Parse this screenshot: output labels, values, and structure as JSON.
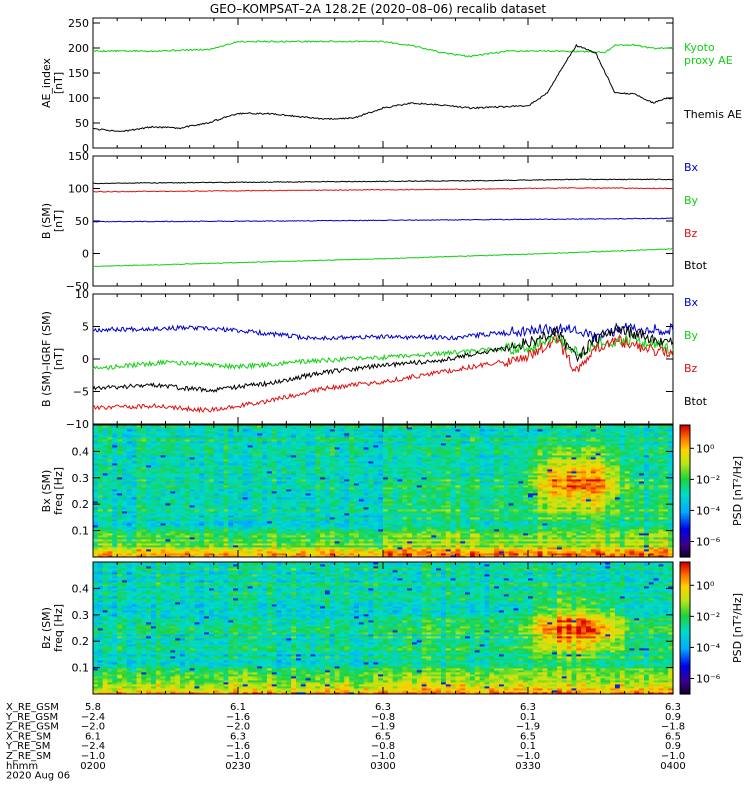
{
  "title": "GEO–KOMPSAT–2A 128.2E (2020–08–06) recalib dataset",
  "colors": {
    "black": "#000000",
    "red": "#e01010",
    "green": "#10d010",
    "blue": "#0000cc",
    "kyoto": "#22cc22"
  },
  "chart_data": [
    {
      "type": "line",
      "id": "ae",
      "ylabel": [
        "AE_index",
        "[nT]"
      ],
      "ylim": [
        0,
        260
      ],
      "yticks": [
        0,
        50,
        100,
        150,
        200,
        250
      ],
      "xlim_minutes": [
        0,
        120
      ],
      "series": [
        {
          "name": "Kyoto proxy AE",
          "label_lines": [
            "Kyoto",
            "proxy AE"
          ],
          "color": "green",
          "points": [
            [
              0,
              194
            ],
            [
              12,
              194
            ],
            [
              24,
              197
            ],
            [
              30,
              213
            ],
            [
              48,
              213
            ],
            [
              60,
              213
            ],
            [
              66,
              205
            ],
            [
              72,
              191
            ],
            [
              78,
              183
            ],
            [
              86,
              194
            ],
            [
              96,
              194
            ],
            [
              104,
              192
            ],
            [
              106,
              191
            ],
            [
              108,
              206
            ],
            [
              112,
              206
            ],
            [
              116,
              199
            ],
            [
              120,
              200
            ]
          ]
        },
        {
          "name": "Themis AE",
          "label_lines": [
            "Themis AE"
          ],
          "color": "black",
          "points": [
            [
              0,
              38
            ],
            [
              6,
              33
            ],
            [
              12,
              42
            ],
            [
              18,
              40
            ],
            [
              24,
              51
            ],
            [
              30,
              69
            ],
            [
              36,
              69
            ],
            [
              48,
              58
            ],
            [
              54,
              60
            ],
            [
              60,
              80
            ],
            [
              66,
              90
            ],
            [
              72,
              86
            ],
            [
              78,
              80
            ],
            [
              84,
              82
            ],
            [
              90,
              84
            ],
            [
              94,
              110
            ],
            [
              98,
              175
            ],
            [
              100,
              205
            ],
            [
              104,
              190
            ],
            [
              108,
              110
            ],
            [
              112,
              108
            ],
            [
              116,
              90
            ],
            [
              118,
              98
            ],
            [
              120,
              100
            ]
          ]
        }
      ]
    },
    {
      "type": "line",
      "id": "bsm",
      "ylabel": [
        "B (SM)",
        "[nT]"
      ],
      "ylim": [
        -50,
        150
      ],
      "yticks": [
        -50,
        0,
        50,
        100,
        150
      ],
      "xlim_minutes": [
        0,
        120
      ],
      "series": [
        {
          "name": "Bx",
          "color": "blue",
          "points": [
            [
              0,
              49
            ],
            [
              40,
              50
            ],
            [
              80,
              52
            ],
            [
              120,
              54
            ]
          ]
        },
        {
          "name": "By",
          "color": "green",
          "points": [
            [
              0,
              -20
            ],
            [
              30,
              -14
            ],
            [
              60,
              -8
            ],
            [
              90,
              -1
            ],
            [
              120,
              7
            ]
          ]
        },
        {
          "name": "Bz",
          "color": "red",
          "points": [
            [
              0,
              95
            ],
            [
              40,
              97
            ],
            [
              80,
              99
            ],
            [
              100,
              101
            ],
            [
              120,
              100
            ]
          ]
        },
        {
          "name": "Btot",
          "color": "black",
          "points": [
            [
              0,
              108
            ],
            [
              40,
              110
            ],
            [
              80,
              112
            ],
            [
              100,
              114
            ],
            [
              120,
              114
            ]
          ]
        }
      ]
    },
    {
      "type": "line",
      "id": "bigrf",
      "ylabel": [
        "B (SM)–IGRF (SM)",
        "[nT]"
      ],
      "ylim": [
        -10,
        10
      ],
      "yticks": [
        -10,
        -5,
        0,
        5,
        10
      ],
      "xlim_minutes": [
        0,
        120
      ],
      "series": [
        {
          "name": "Bx",
          "color": "blue",
          "points": [
            [
              0,
              4.5
            ],
            [
              20,
              4.8
            ],
            [
              30,
              4.4
            ],
            [
              45,
              3.2
            ],
            [
              60,
              3.4
            ],
            [
              75,
              3.3
            ],
            [
              90,
              4.5
            ],
            [
              100,
              4.8
            ],
            [
              104,
              3.2
            ],
            [
              110,
              4.8
            ],
            [
              120,
              4.5
            ]
          ]
        },
        {
          "name": "By",
          "color": "green",
          "points": [
            [
              0,
              -1.5
            ],
            [
              15,
              -0.5
            ],
            [
              30,
              -1.2
            ],
            [
              45,
              -0.3
            ],
            [
              60,
              0.2
            ],
            [
              75,
              1.0
            ],
            [
              90,
              1.8
            ],
            [
              96,
              3.5
            ],
            [
              100,
              1.0
            ],
            [
              105,
              2.5
            ],
            [
              112,
              3.0
            ],
            [
              120,
              1.5
            ]
          ]
        },
        {
          "name": "Bz",
          "color": "red",
          "points": [
            [
              0,
              -7.5
            ],
            [
              12,
              -7.2
            ],
            [
              24,
              -7.9
            ],
            [
              36,
              -6.5
            ],
            [
              48,
              -4.5
            ],
            [
              60,
              -3.5
            ],
            [
              72,
              -2.0
            ],
            [
              84,
              -0.5
            ],
            [
              90,
              0.5
            ],
            [
              96,
              3.0
            ],
            [
              100,
              -2.0
            ],
            [
              104,
              1.5
            ],
            [
              108,
              3.0
            ],
            [
              114,
              1.5
            ],
            [
              120,
              1.0
            ]
          ]
        },
        {
          "name": "Btot",
          "color": "black",
          "points": [
            [
              0,
              -4.5
            ],
            [
              12,
              -4.0
            ],
            [
              24,
              -4.8
            ],
            [
              36,
              -3.8
            ],
            [
              48,
              -2.0
            ],
            [
              60,
              -1.0
            ],
            [
              72,
              -0.2
            ],
            [
              84,
              1.5
            ],
            [
              90,
              2.5
            ],
            [
              96,
              4.2
            ],
            [
              100,
              0.2
            ],
            [
              104,
              3.0
            ],
            [
              108,
              4.8
            ],
            [
              114,
              3.5
            ],
            [
              120,
              2.5
            ]
          ]
        }
      ]
    },
    {
      "type": "heatmap",
      "id": "bx_psd",
      "ylabel": [
        "Bx (SM)",
        "freq [Hz]"
      ],
      "ylim": [
        0,
        0.5
      ],
      "yticks": [
        0.1,
        0.2,
        0.3,
        0.4
      ],
      "xlim_minutes": [
        0,
        120
      ],
      "colorbar": {
        "label": "PSD [nT²/Hz]",
        "ticks": [
          "10⁰",
          "10⁻²",
          "10⁻⁴",
          "10⁻⁶"
        ],
        "log_range": [
          -7,
          1.5
        ]
      },
      "seed": 7,
      "hot_bursts": [
        [
          88,
          112,
          0.22,
          0.36
        ]
      ]
    },
    {
      "type": "heatmap",
      "id": "bz_psd",
      "ylabel": [
        "Bz (SM)",
        "freq [Hz]"
      ],
      "ylim": [
        0,
        0.5
      ],
      "yticks": [
        0.1,
        0.2,
        0.3,
        0.4
      ],
      "xlim_minutes": [
        0,
        120
      ],
      "colorbar": {
        "label": "PSD [nT²/Hz]",
        "ticks": [
          "10⁰",
          "10⁻²",
          "10⁻⁴",
          "10⁻⁶"
        ],
        "log_range": [
          -7,
          1.5
        ]
      },
      "seed": 19,
      "hot_bursts": [
        [
          88,
          112,
          0.2,
          0.3
        ]
      ]
    }
  ],
  "ephemeris": {
    "rows": [
      {
        "label": "X_RE_GSM",
        "values": [
          "5.8",
          "6.1",
          "6.3",
          "6.3",
          "6.3"
        ]
      },
      {
        "label": "Y_RE_GSM",
        "values": [
          "−2.4",
          "−1.6",
          "−0.8",
          "0.1",
          "0.9"
        ]
      },
      {
        "label": "Z_RE_GSM",
        "values": [
          "−2.0",
          "−2.0",
          "−1.9",
          "−1.9",
          "−1.8"
        ]
      },
      {
        "label": "X_RE_SM",
        "values": [
          "6.1",
          "6.3",
          "6.5",
          "6.5",
          "6.5"
        ]
      },
      {
        "label": "Y_RE_SM",
        "values": [
          "−2.4",
          "−1.6",
          "−0.8",
          "0.1",
          "0.9"
        ]
      },
      {
        "label": "Z_RE_SM",
        "values": [
          "−1.0",
          "−1.0",
          "−1.0",
          "−1.0",
          "−1.0"
        ]
      },
      {
        "label": "hhmm",
        "values": [
          "0200",
          "0230",
          "0300",
          "0330",
          "0400"
        ]
      }
    ],
    "date": "2020 Aug 06"
  }
}
